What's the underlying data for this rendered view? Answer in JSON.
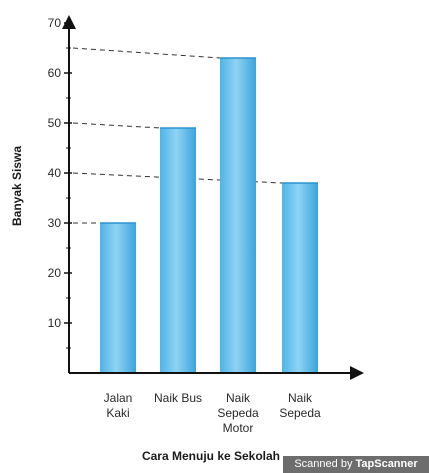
{
  "chart_data": {
    "type": "bar",
    "title": "",
    "xlabel": "Cara Menuju ke Sekolah",
    "ylabel": "Banyak Siswa",
    "categories": [
      [
        "Jalan",
        "Kaki"
      ],
      [
        "Naik Bus"
      ],
      [
        "Naik",
        "Sepeda",
        "Motor"
      ],
      [
        "Naik",
        "Sepeda"
      ]
    ],
    "values": [
      30,
      49,
      63,
      38
    ],
    "ylim": [
      0,
      70
    ],
    "yticks": [
      10,
      20,
      30,
      40,
      50,
      60,
      70
    ],
    "grid": false,
    "reference_lines": [
      {
        "y_axis_value": 65,
        "bar_value": 63
      },
      {
        "y_axis_value": 50,
        "bar_value": 49
      },
      {
        "y_axis_value": 40,
        "bar_value": 38
      },
      {
        "y_axis_value": 30,
        "bar_value": 30
      }
    ],
    "colors": {
      "bar_light": "#9fdcf6",
      "bar_mid": "#57bdeb",
      "bar_dark": "#2f9fd8",
      "axis": "#111111",
      "dash": "#333333"
    }
  },
  "watermark": {
    "prefix": "Scanned by ",
    "brand": "TapScanner"
  }
}
